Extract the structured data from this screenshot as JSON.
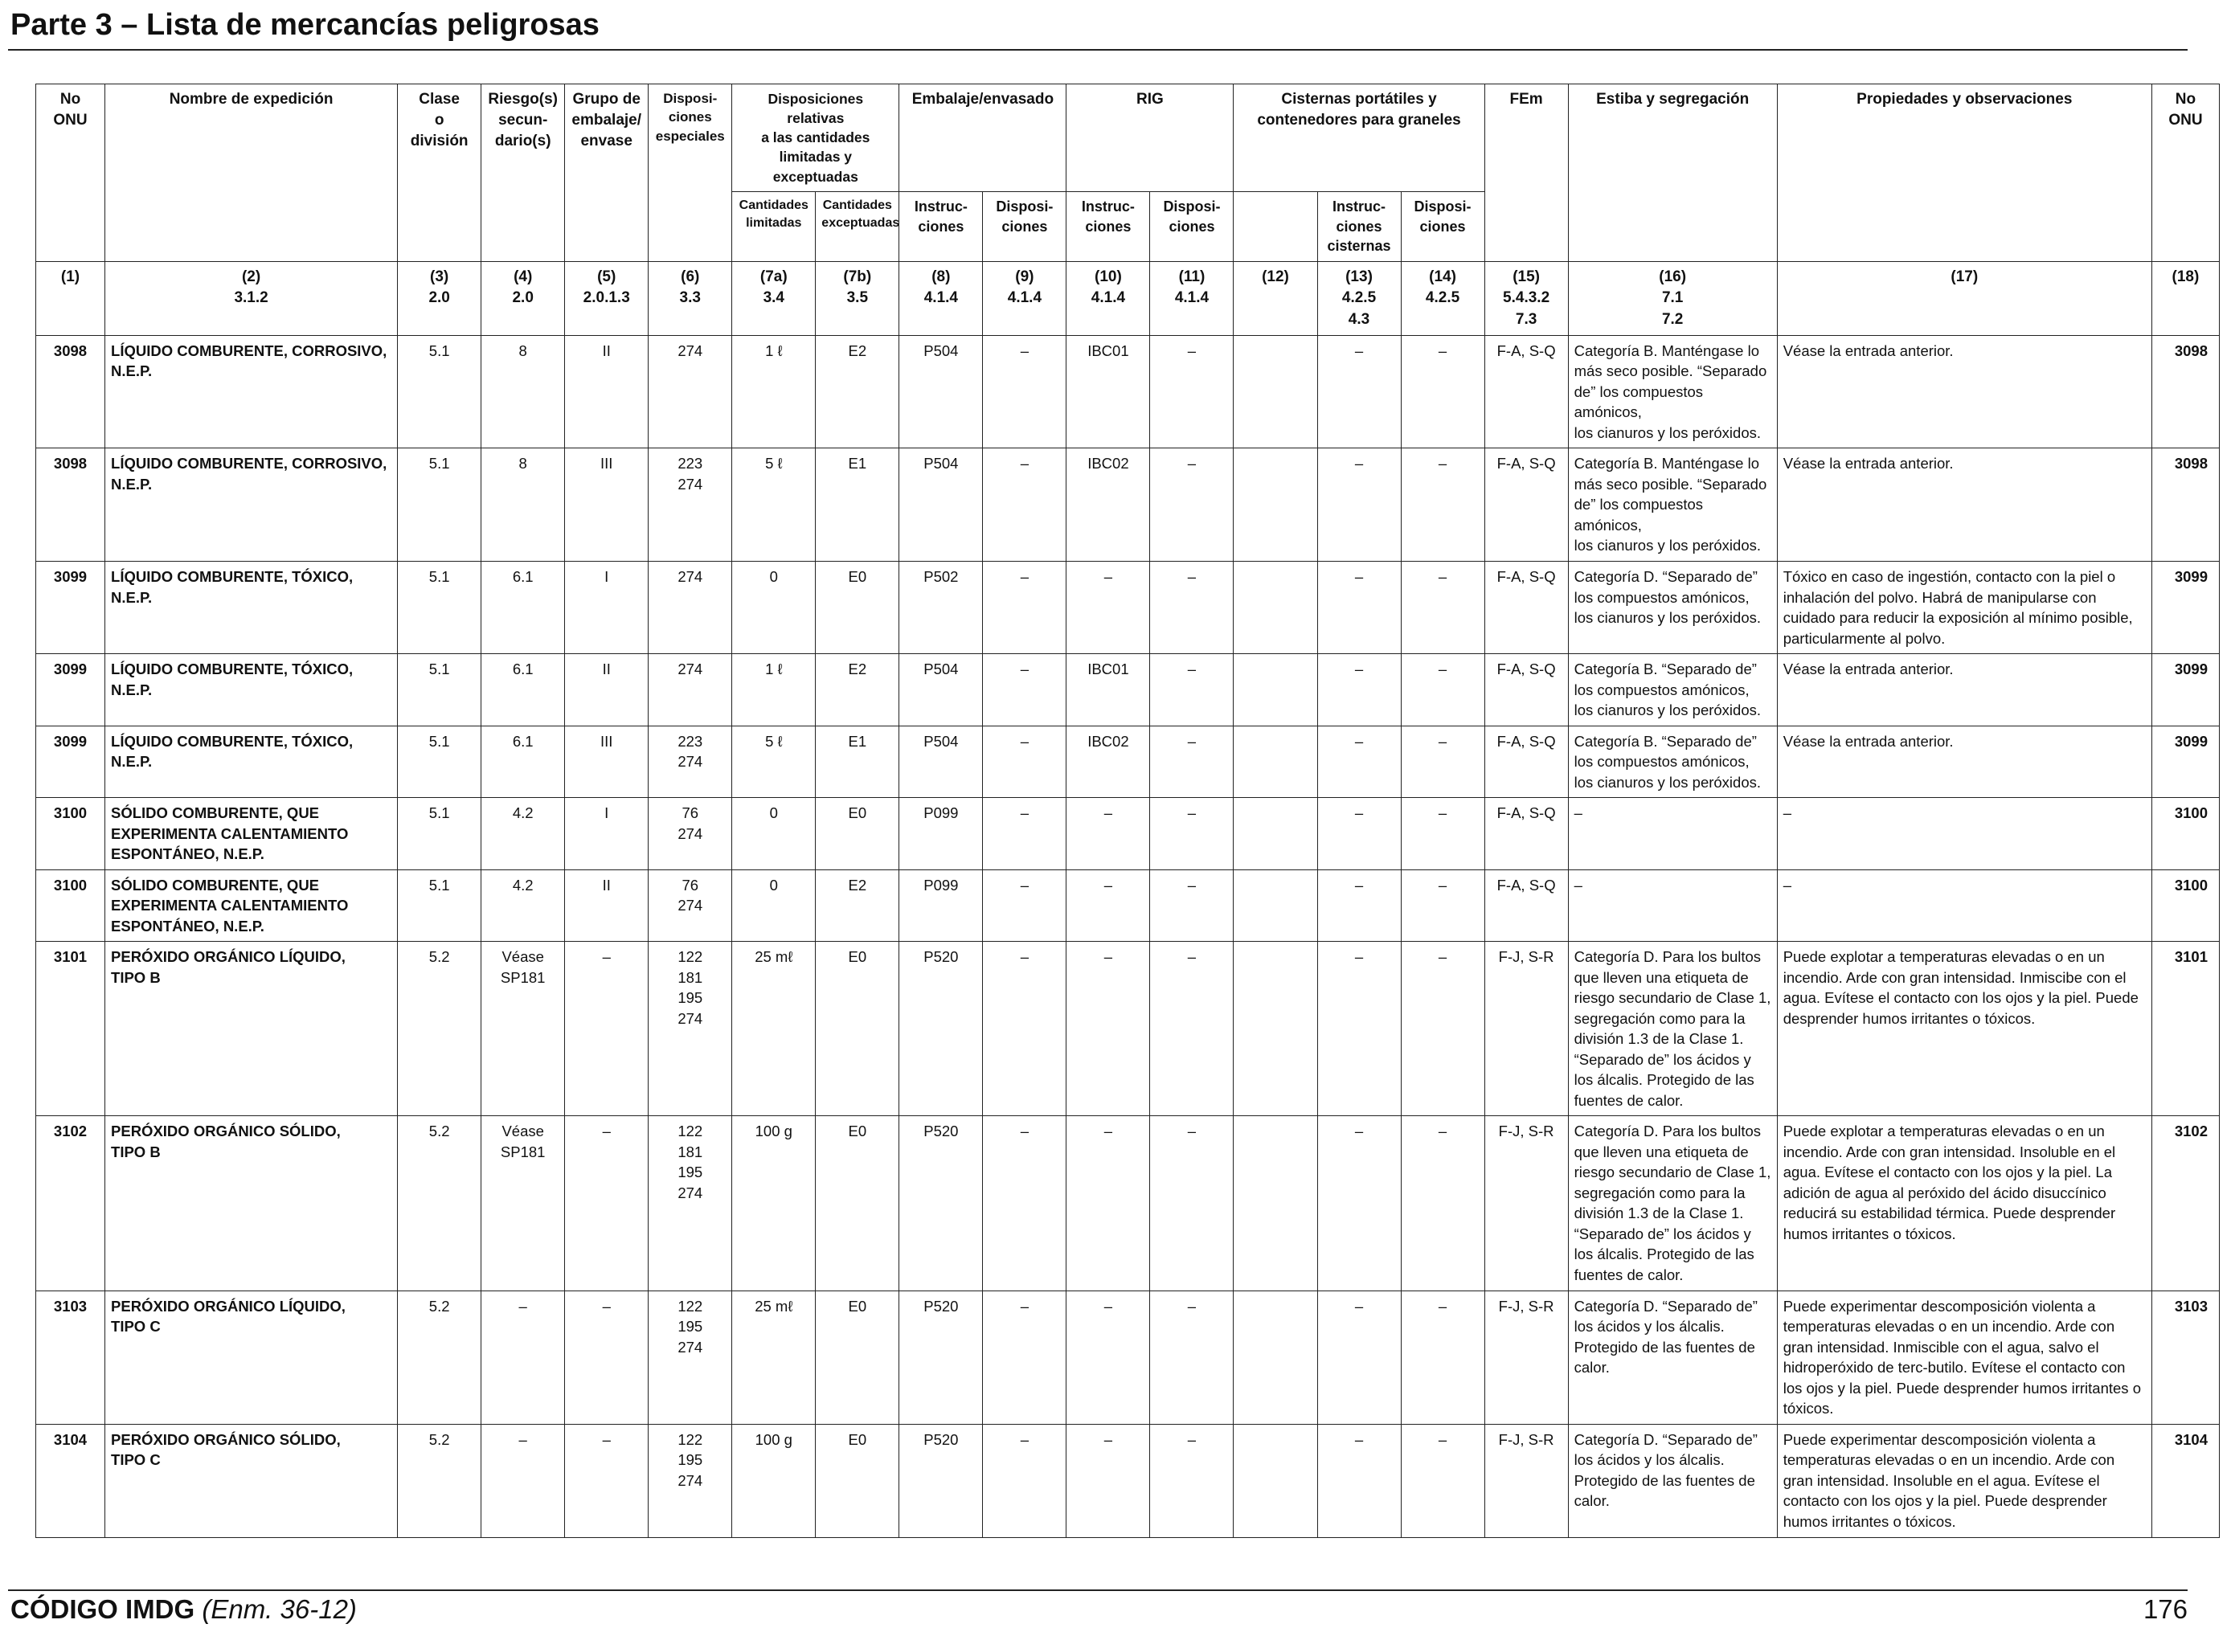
{
  "page_title": "Parte 3 – Lista de mercancías peligrosas",
  "header": {
    "no_onu": "No\nONU",
    "nombre": "Nombre de expedición",
    "clase": "Clase\no\ndivisión",
    "riesgo": "Riesgo(s)\nsecun-\ndario(s)",
    "grupo": "Grupo de\nembalaje/\nenvase",
    "dispos_esp": "Disposi-\nciones\nespeciales",
    "dispos_rel": "Disposiciones relativas\na las cantidades\nlimitadas y exceptuadas",
    "embalaje": "Embalaje/envasado",
    "rig": "RIG",
    "cisternas": "Cisternas portátiles y\ncontenedores para graneles",
    "fem": "FEm",
    "estiba": "Estiba y segregación",
    "propiedades": "Propiedades y observaciones",
    "no_onu_end": "No\nONU",
    "sub": {
      "cant_lim": "Cantidades\nlimitadas",
      "cant_exc": "Cantidades\nexceptuadas",
      "instr8": "Instruc-\nciones",
      "disp9": "Disposi-\nciones",
      "instr10": "Instruc-\nciones",
      "disp11": "Disposi-\nciones",
      "instr13": "Instruc-\nciones\ncisternas",
      "disp14": "Disposi-\nciones"
    },
    "nums": [
      "(1)",
      "(2)\n3.1.2",
      "(3)\n2.0",
      "(4)\n2.0",
      "(5)\n2.0.1.3",
      "(6)\n3.3",
      "(7a)\n3.4",
      "(7b)\n3.5",
      "(8)\n4.1.4",
      "(9)\n4.1.4",
      "(10)\n4.1.4",
      "(11)\n4.1.4",
      "(12)",
      "(13)\n4.2.5\n4.3",
      "(14)\n4.2.5",
      "(15)\n5.4.3.2\n7.3",
      "(16)\n7.1\n7.2",
      "(17)",
      "(18)"
    ]
  },
  "rows": [
    {
      "un": "3098",
      "name": "LÍQUIDO COMBURENTE, CORROSIVO,\nN.E.P.",
      "cls": "5.1",
      "sub": "8",
      "pg": "II",
      "sp": "274",
      "lq": "1 ℓ",
      "eq": "E2",
      "pi": "P504",
      "pp": "–",
      "ibc": "IBC01",
      "ibcp": "–",
      "c12": "",
      "tank": "–",
      "tankp": "–",
      "ems": "F-A, S-Q",
      "stow": "Categoría B. Manténgase lo más seco posible. “Separado de” los compuestos amónicos,\nlos cianuros y los peróxidos.",
      "props": "Véase la entrada anterior.",
      "un2": "3098"
    },
    {
      "un": "3098",
      "name": "LÍQUIDO COMBURENTE, CORROSIVO,\nN.E.P.",
      "cls": "5.1",
      "sub": "8",
      "pg": "III",
      "sp": "223\n274",
      "lq": "5 ℓ",
      "eq": "E1",
      "pi": "P504",
      "pp": "–",
      "ibc": "IBC02",
      "ibcp": "–",
      "c12": "",
      "tank": "–",
      "tankp": "–",
      "ems": "F-A, S-Q",
      "stow": "Categoría B. Manténgase lo más seco posible. “Separado de” los compuestos amónicos,\nlos cianuros y los peróxidos.",
      "props": "Véase la entrada anterior.",
      "un2": "3098"
    },
    {
      "un": "3099",
      "name": "LÍQUIDO COMBURENTE, TÓXICO,\nN.E.P.",
      "cls": "5.1",
      "sub": "6.1",
      "pg": "I",
      "sp": "274",
      "lq": "0",
      "eq": "E0",
      "pi": "P502",
      "pp": "–",
      "ibc": "–",
      "ibcp": "–",
      "c12": "",
      "tank": "–",
      "tankp": "–",
      "ems": "F-A, S-Q",
      "stow": "Categoría D. “Separado de” los compuestos amónicos, los cianuros y los peróxidos.",
      "props": "Tóxico en caso de ingestión, contacto con la piel o inhalación del polvo. Habrá de manipularse con cuidado para reducir la exposición al mínimo posible, particularmente al polvo.",
      "un2": "3099"
    },
    {
      "un": "3099",
      "name": "LÍQUIDO COMBURENTE, TÓXICO,\nN.E.P.",
      "cls": "5.1",
      "sub": "6.1",
      "pg": "II",
      "sp": "274",
      "lq": "1 ℓ",
      "eq": "E2",
      "pi": "P504",
      "pp": "–",
      "ibc": "IBC01",
      "ibcp": "–",
      "c12": "",
      "tank": "–",
      "tankp": "–",
      "ems": "F-A, S-Q",
      "stow": "Categoría B. “Separado de” los compuestos amónicos, los cianuros y los peróxidos.",
      "props": "Véase la entrada anterior.",
      "un2": "3099"
    },
    {
      "un": "3099",
      "name": "LÍQUIDO COMBURENTE, TÓXICO,\nN.E.P.",
      "cls": "5.1",
      "sub": "6.1",
      "pg": "III",
      "sp": "223\n274",
      "lq": "5 ℓ",
      "eq": "E1",
      "pi": "P504",
      "pp": "–",
      "ibc": "IBC02",
      "ibcp": "–",
      "c12": "",
      "tank": "–",
      "tankp": "–",
      "ems": "F-A, S-Q",
      "stow": "Categoría B. “Separado de” los compuestos amónicos, los cianuros y los peróxidos.",
      "props": "Véase la entrada anterior.",
      "un2": "3099"
    },
    {
      "un": "3100",
      "name": "SÓLIDO COMBURENTE, QUE\nEXPERIMENTA CALENTAMIENTO\nESPONTÁNEO, N.E.P.",
      "cls": "5.1",
      "sub": "4.2",
      "pg": "I",
      "sp": "76\n274",
      "lq": "0",
      "eq": "E0",
      "pi": "P099",
      "pp": "–",
      "ibc": "–",
      "ibcp": "–",
      "c12": "",
      "tank": "–",
      "tankp": "–",
      "ems": "F-A, S-Q",
      "stow": "–",
      "props": "–",
      "un2": "3100"
    },
    {
      "un": "3100",
      "name": "SÓLIDO COMBURENTE, QUE\nEXPERIMENTA CALENTAMIENTO\nESPONTÁNEO, N.E.P.",
      "cls": "5.1",
      "sub": "4.2",
      "pg": "II",
      "sp": "76\n274",
      "lq": "0",
      "eq": "E2",
      "pi": "P099",
      "pp": "–",
      "ibc": "–",
      "ibcp": "–",
      "c12": "",
      "tank": "–",
      "tankp": "–",
      "ems": "F-A, S-Q",
      "stow": "–",
      "props": "–",
      "un2": "3100"
    },
    {
      "un": "3101",
      "name": "PERÓXIDO ORGÁNICO LÍQUIDO,\nTIPO B",
      "cls": "5.2",
      "sub": "Véase\nSP181",
      "pg": "–",
      "sp": "122\n181\n195\n274",
      "lq": "25 mℓ",
      "eq": "E0",
      "pi": "P520",
      "pp": "–",
      "ibc": "–",
      "ibcp": "–",
      "c12": "",
      "tank": "–",
      "tankp": "–",
      "ems": "F-J, S-R",
      "stow": "Categoría D. Para los bultos que lleven una etiqueta de riesgo secundario de Clase 1, segregación como para la división 1.3 de la Clase 1. “Separado de” los ácidos y los álcalis. Protegido de las fuentes de calor.",
      "props": "Puede explotar a temperaturas elevadas o en un incendio. Arde con gran intensidad. Inmiscibe con el agua. Evítese el contacto con los ojos y la piel. Puede desprender humos irritantes o tóxicos.",
      "un2": "3101"
    },
    {
      "un": "3102",
      "name": "PERÓXIDO ORGÁNICO SÓLIDO,\nTIPO B",
      "cls": "5.2",
      "sub": "Véase\nSP181",
      "pg": "–",
      "sp": "122\n181\n195\n274",
      "lq": "100 g",
      "eq": "E0",
      "pi": "P520",
      "pp": "–",
      "ibc": "–",
      "ibcp": "–",
      "c12": "",
      "tank": "–",
      "tankp": "–",
      "ems": "F-J, S-R",
      "stow": "Categoría D. Para los bultos que lleven una etiqueta de riesgo secundario de Clase 1, segregación como para la división 1.3 de la Clase 1. “Separado de” los ácidos y los álcalis. Protegido de las fuentes de calor.",
      "props": "Puede explotar a temperaturas elevadas o en un incendio. Arde con gran intensidad. Insoluble en el agua. Evítese el contacto con los ojos y la piel. La adición de agua al peróxido del ácido disuccínico reducirá su estabilidad térmica. Puede desprender humos irritantes o tóxicos.",
      "un2": "3102"
    },
    {
      "un": "3103",
      "name": "PERÓXIDO ORGÁNICO LÍQUIDO,\nTIPO C",
      "cls": "5.2",
      "sub": "–",
      "pg": "–",
      "sp": "122\n195\n274",
      "lq": "25 mℓ",
      "eq": "E0",
      "pi": "P520",
      "pp": "–",
      "ibc": "–",
      "ibcp": "–",
      "c12": "",
      "tank": "–",
      "tankp": "–",
      "ems": "F-J, S-R",
      "stow": "Categoría D. “Separado de” los ácidos y los álcalis. Protegido de las fuentes de calor.",
      "props": "Puede experimentar descomposición violenta a temperaturas elevadas o en un incendio. Arde con gran intensidad. Inmiscible con el agua, salvo el hidroperóxido de terc-butilo. Evítese el contacto con los ojos y la piel. Puede desprender humos irritantes o tóxicos.",
      "un2": "3103"
    },
    {
      "un": "3104",
      "name": "PERÓXIDO ORGÁNICO SÓLIDO,\nTIPO C",
      "cls": "5.2",
      "sub": "–",
      "pg": "–",
      "sp": "122\n195\n274",
      "lq": "100 g",
      "eq": "E0",
      "pi": "P520",
      "pp": "–",
      "ibc": "–",
      "ibcp": "–",
      "c12": "",
      "tank": "–",
      "tankp": "–",
      "ems": "F-J, S-R",
      "stow": "Categoría D. “Separado de” los ácidos y los álcalis. Protegido de las fuentes de calor.",
      "props": "Puede experimentar descomposición violenta a temperaturas elevadas o en un incendio. Arde con gran intensidad. Insoluble en el agua. Evítese el contacto con los ojos y la piel. Puede desprender humos irritantes o tóxicos.",
      "un2": "3104"
    }
  ],
  "footer": {
    "code": "CÓDIGO IMDG",
    "amendment": "(Enm. 36-12)",
    "page": "176"
  }
}
